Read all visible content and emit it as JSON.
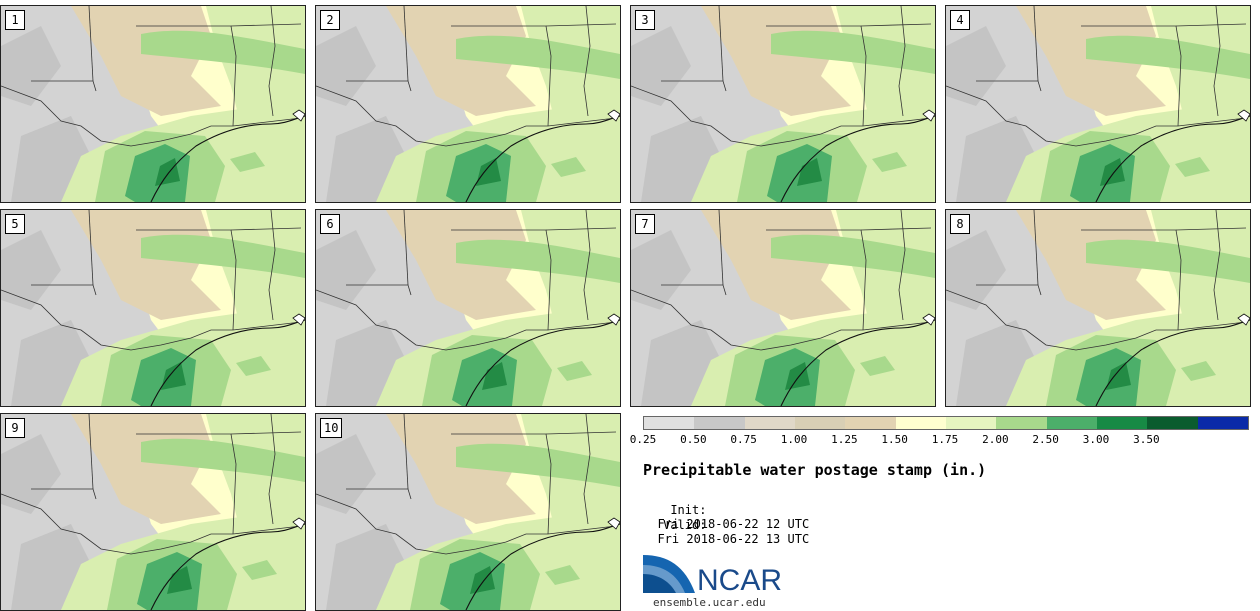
{
  "panels": [
    "1",
    "2",
    "3",
    "4",
    "5",
    "6",
    "7",
    "8",
    "9",
    "10"
  ],
  "colorbar": {
    "labels": [
      "0.25",
      "0.50",
      "0.75",
      "1.00",
      "1.25",
      "1.50",
      "1.75",
      "2.00",
      "2.50",
      "3.00",
      "3.50"
    ],
    "colors": [
      "#e0e0e0",
      "#c8c8c8",
      "#e0d8c8",
      "#d8cfb5",
      "#e2d3b2",
      "#ffffd0",
      "#e6f5c0",
      "#a8d98c",
      "#4caf6a",
      "#178a45",
      "#0a5c2e",
      "#0a2aa8"
    ]
  },
  "title": "Precipitable water postage stamp (in.)",
  "init_label": "Init:",
  "init_value": "Fri 2018-06-22 12 UTC",
  "valid_label": "Valid:",
  "valid_value": "Fri 2018-06-22 13 UTC",
  "logo_text": "NCAR",
  "logo_url": "ensemble.ucar.edu",
  "map_colors": {
    "gray": "#d3d3d3",
    "darkgray": "#c4c4c4",
    "tan": "#e2d3b2",
    "cream": "#ffffcc",
    "light": "#d9eeb0",
    "green": "#a8d98c",
    "dark": "#4caf6a",
    "deeper": "#238b45"
  }
}
